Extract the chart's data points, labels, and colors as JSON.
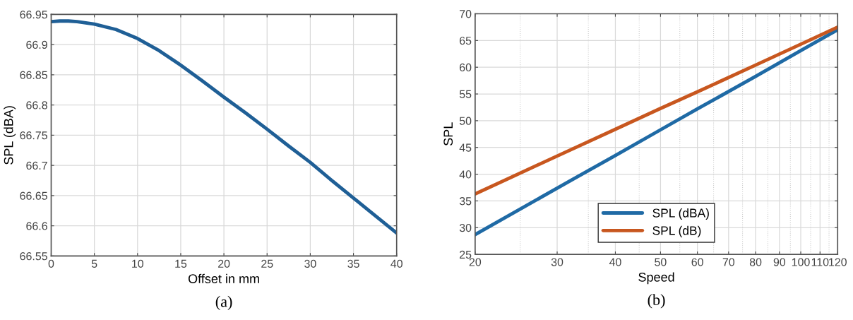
{
  "chart_data": [
    {
      "type": "line",
      "xlabel": "Offset in mm",
      "ylabel": "SPL (dBA)",
      "annotations": [
        "(a)"
      ],
      "x": [
        0,
        1,
        2,
        3,
        5,
        7.5,
        10,
        12.5,
        15,
        17.5,
        20,
        22.5,
        25,
        27.5,
        30,
        32.5,
        35,
        37.5,
        40
      ],
      "series": [
        {
          "color": "#1f5f96",
          "values": [
            66.938,
            66.939,
            66.939,
            66.938,
            66.934,
            66.925,
            66.91,
            66.89,
            66.866,
            66.84,
            66.813,
            66.787,
            66.76,
            66.732,
            66.705,
            66.675,
            66.646,
            66.617,
            66.588
          ]
        }
      ],
      "xlim": [
        0,
        40
      ],
      "xticks": [
        0,
        5,
        10,
        15,
        20,
        25,
        30,
        35,
        40
      ],
      "ylim": [
        66.55,
        66.95
      ],
      "yticks": [
        66.55,
        66.6,
        66.65,
        66.7,
        66.75,
        66.8,
        66.85,
        66.9,
        66.95
      ],
      "grid": true,
      "marker": "none",
      "line_style": "solid"
    },
    {
      "type": "line",
      "xlabel": "Speed",
      "ylabel": "SPL",
      "annotations": [
        "(b)"
      ],
      "x": [
        20,
        30,
        40,
        50,
        60,
        80,
        100,
        120
      ],
      "series": [
        {
          "name": "SPL (dBA)",
          "color": "#1f6aa5",
          "values": [
            28.7,
            37.4,
            43.5,
            48.3,
            52.2,
            58.3,
            63.1,
            67.0
          ]
        },
        {
          "name": "SPL (dB)",
          "color": "#c8571f",
          "values": [
            36.3,
            43.4,
            48.4,
            52.3,
            55.4,
            60.4,
            64.3,
            67.5
          ]
        }
      ],
      "log": "x",
      "xlim": [
        20,
        120
      ],
      "xticks": [
        20,
        30,
        40,
        50,
        60,
        70,
        80,
        90,
        100,
        110,
        120
      ],
      "ylim": [
        25,
        70
      ],
      "yticks": [
        25,
        30,
        35,
        40,
        45,
        50,
        55,
        60,
        65,
        70
      ],
      "grid": true,
      "legend": "bottom",
      "marker": "none",
      "line_style": "solid"
    }
  ]
}
